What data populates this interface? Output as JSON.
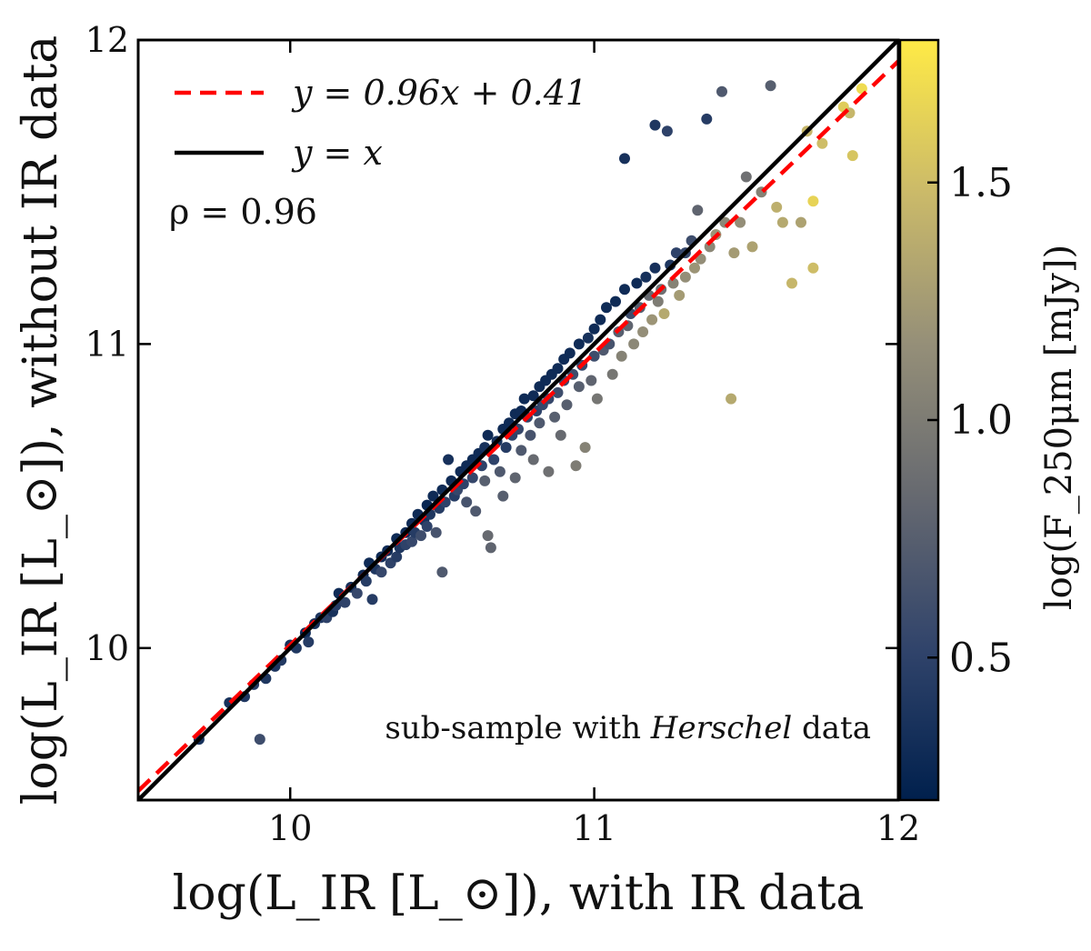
{
  "chart_data": {
    "type": "scatter",
    "xlabel": "log(L_IR [L_⊙]), with IR data",
    "ylabel": "log(L_IR [L_⊙]), without IR data",
    "xlim": [
      9.5,
      12.0
    ],
    "ylim": [
      9.5,
      12.0
    ],
    "x_ticks": [
      "10",
      "11",
      "12"
    ],
    "y_ticks": [
      "10",
      "11",
      "12"
    ],
    "annotation": "sub-sample with Herschel data",
    "annotation_prefix": "sub-sample with ",
    "annotation_italic": "Herschel",
    "annotation_suffix": " data",
    "correlation_label": "ρ = 0.96",
    "legend_position": "top-left",
    "legend": [
      {
        "label": "y = 0.96x + 0.41",
        "color": "#ff0000",
        "style": "dashed"
      },
      {
        "label": "y = x",
        "color": "#000000",
        "style": "solid"
      }
    ],
    "lines": [
      {
        "name": "fit",
        "slope": 0.96,
        "intercept": 0.41,
        "color": "#ff0000",
        "style": "dashed"
      },
      {
        "name": "identity",
        "slope": 1.0,
        "intercept": 0.0,
        "color": "#000000",
        "style": "solid"
      }
    ],
    "colorbar": {
      "label": "log(F_250μm [mJy])",
      "range": [
        0.2,
        1.8
      ],
      "ticks": [
        "0.5",
        "1.0",
        "1.5"
      ],
      "colormap": "cividis",
      "stops": [
        "#00204d",
        "#31446b",
        "#666970",
        "#958f78",
        "#cbba69",
        "#ffea46"
      ]
    },
    "points": [
      [
        9.7,
        9.7,
        0.35
      ],
      [
        9.8,
        9.82,
        0.35
      ],
      [
        9.85,
        9.84,
        0.4
      ],
      [
        9.88,
        9.88,
        0.45
      ],
      [
        9.9,
        9.7,
        0.6
      ],
      [
        9.92,
        9.9,
        0.4
      ],
      [
        9.95,
        9.94,
        0.38
      ],
      [
        9.97,
        9.96,
        0.42
      ],
      [
        10.0,
        10.01,
        0.35
      ],
      [
        10.02,
        10.0,
        0.4
      ],
      [
        10.05,
        10.05,
        0.3
      ],
      [
        10.06,
        10.02,
        0.45
      ],
      [
        10.08,
        10.08,
        0.35
      ],
      [
        10.1,
        10.1,
        0.4
      ],
      [
        10.12,
        10.1,
        0.5
      ],
      [
        10.14,
        10.12,
        0.35
      ],
      [
        10.15,
        10.14,
        0.45
      ],
      [
        10.16,
        10.18,
        0.3
      ],
      [
        10.18,
        10.15,
        0.5
      ],
      [
        10.2,
        10.2,
        0.35
      ],
      [
        10.22,
        10.18,
        0.55
      ],
      [
        10.24,
        10.24,
        0.3
      ],
      [
        10.25,
        10.22,
        0.45
      ],
      [
        10.26,
        10.28,
        0.3
      ],
      [
        10.27,
        10.16,
        0.45
      ],
      [
        10.28,
        10.26,
        0.4
      ],
      [
        10.3,
        10.3,
        0.3
      ],
      [
        10.3,
        10.25,
        0.55
      ],
      [
        10.32,
        10.32,
        0.3
      ],
      [
        10.33,
        10.28,
        0.5
      ],
      [
        10.35,
        10.36,
        0.3
      ],
      [
        10.35,
        10.3,
        0.45
      ],
      [
        10.36,
        10.33,
        0.4
      ],
      [
        10.38,
        10.38,
        0.3
      ],
      [
        10.38,
        10.34,
        0.5
      ],
      [
        10.4,
        10.41,
        0.3
      ],
      [
        10.4,
        10.35,
        0.55
      ],
      [
        10.41,
        10.38,
        0.45
      ],
      [
        10.42,
        10.44,
        0.3
      ],
      [
        10.43,
        10.37,
        0.6
      ],
      [
        10.44,
        10.42,
        0.35
      ],
      [
        10.45,
        10.47,
        0.25
      ],
      [
        10.45,
        10.4,
        0.5
      ],
      [
        10.46,
        10.44,
        0.4
      ],
      [
        10.47,
        10.5,
        0.3
      ],
      [
        10.48,
        10.38,
        0.65
      ],
      [
        10.49,
        10.46,
        0.45
      ],
      [
        10.5,
        10.52,
        0.3
      ],
      [
        10.5,
        10.25,
        0.7
      ],
      [
        10.51,
        10.48,
        0.5
      ],
      [
        10.52,
        10.62,
        0.35
      ],
      [
        10.53,
        10.55,
        0.3
      ],
      [
        10.54,
        10.5,
        0.45
      ],
      [
        10.55,
        10.52,
        0.55
      ],
      [
        10.56,
        10.58,
        0.3
      ],
      [
        10.57,
        10.54,
        0.5
      ],
      [
        10.58,
        10.6,
        0.3
      ],
      [
        10.58,
        10.48,
        0.65
      ],
      [
        10.6,
        10.62,
        0.3
      ],
      [
        10.6,
        10.56,
        0.55
      ],
      [
        10.61,
        10.45,
        0.7
      ],
      [
        10.62,
        10.64,
        0.3
      ],
      [
        10.63,
        10.6,
        0.5
      ],
      [
        10.64,
        10.66,
        0.35
      ],
      [
        10.64,
        10.55,
        0.75
      ],
      [
        10.65,
        10.7,
        0.3
      ],
      [
        10.65,
        10.37,
        0.85
      ],
      [
        10.66,
        10.33,
        0.8
      ],
      [
        10.67,
        10.62,
        0.5
      ],
      [
        10.68,
        10.68,
        0.35
      ],
      [
        10.69,
        10.58,
        0.7
      ],
      [
        10.7,
        10.72,
        0.3
      ],
      [
        10.7,
        10.5,
        0.75
      ],
      [
        10.71,
        10.66,
        0.45
      ],
      [
        10.72,
        10.74,
        0.3
      ],
      [
        10.73,
        10.7,
        0.5
      ],
      [
        10.74,
        10.77,
        0.3
      ],
      [
        10.74,
        10.56,
        0.8
      ],
      [
        10.75,
        10.72,
        0.55
      ],
      [
        10.76,
        10.78,
        0.3
      ],
      [
        10.76,
        10.65,
        0.7
      ],
      [
        10.77,
        10.82,
        0.3
      ],
      [
        10.78,
        10.76,
        0.5
      ],
      [
        10.79,
        10.7,
        0.65
      ],
      [
        10.8,
        10.83,
        0.3
      ],
      [
        10.8,
        10.62,
        0.85
      ],
      [
        10.81,
        10.78,
        0.5
      ],
      [
        10.82,
        10.86,
        0.3
      ],
      [
        10.82,
        10.74,
        0.7
      ],
      [
        10.83,
        10.8,
        0.55
      ],
      [
        10.84,
        10.88,
        0.3
      ],
      [
        10.85,
        10.82,
        0.55
      ],
      [
        10.85,
        10.58,
        0.9
      ],
      [
        10.86,
        10.9,
        0.3
      ],
      [
        10.87,
        10.76,
        0.75
      ],
      [
        10.88,
        10.92,
        0.3
      ],
      [
        10.88,
        10.84,
        0.6
      ],
      [
        10.89,
        10.7,
        0.85
      ],
      [
        10.9,
        10.95,
        0.3
      ],
      [
        10.9,
        10.88,
        0.55
      ],
      [
        10.91,
        10.8,
        0.75
      ],
      [
        10.92,
        10.97,
        0.3
      ],
      [
        10.93,
        10.9,
        0.6
      ],
      [
        10.94,
        10.6,
        1.0
      ],
      [
        10.95,
        11.0,
        0.3
      ],
      [
        10.95,
        10.86,
        0.75
      ],
      [
        10.96,
        10.93,
        0.55
      ],
      [
        10.97,
        10.66,
        1.05
      ],
      [
        10.98,
        11.02,
        0.35
      ],
      [
        10.99,
        10.88,
        0.8
      ],
      [
        11.0,
        11.05,
        0.3
      ],
      [
        11.0,
        10.96,
        0.6
      ],
      [
        11.01,
        10.82,
        0.95
      ],
      [
        11.02,
        11.08,
        0.3
      ],
      [
        11.03,
        10.98,
        0.7
      ],
      [
        11.04,
        11.12,
        0.3
      ],
      [
        11.05,
        11.0,
        0.65
      ],
      [
        11.06,
        10.9,
        0.95
      ],
      [
        11.07,
        11.14,
        0.3
      ],
      [
        11.08,
        11.04,
        0.75
      ],
      [
        11.09,
        10.96,
        1.05
      ],
      [
        11.1,
        11.61,
        0.35
      ],
      [
        11.1,
        11.18,
        0.3
      ],
      [
        11.11,
        11.06,
        0.8
      ],
      [
        11.12,
        11.1,
        0.6
      ],
      [
        11.13,
        11.0,
        1.1
      ],
      [
        11.14,
        11.2,
        0.3
      ],
      [
        11.15,
        11.12,
        0.75
      ],
      [
        11.16,
        11.04,
        1.15
      ],
      [
        11.17,
        11.22,
        0.35
      ],
      [
        11.18,
        11.16,
        0.85
      ],
      [
        11.19,
        11.08,
        1.2
      ],
      [
        11.2,
        11.25,
        0.35
      ],
      [
        11.2,
        11.72,
        0.4
      ],
      [
        11.21,
        11.14,
        1.0
      ],
      [
        11.22,
        11.18,
        0.9
      ],
      [
        11.23,
        11.1,
        1.35
      ],
      [
        11.24,
        11.7,
        0.5
      ],
      [
        11.25,
        11.26,
        0.4
      ],
      [
        11.26,
        11.2,
        1.05
      ],
      [
        11.27,
        11.3,
        0.5
      ],
      [
        11.28,
        11.16,
        1.25
      ],
      [
        11.3,
        11.3,
        0.55
      ],
      [
        11.3,
        11.22,
        1.15
      ],
      [
        11.32,
        11.34,
        0.6
      ],
      [
        11.33,
        11.25,
        1.2
      ],
      [
        11.34,
        11.44,
        0.8
      ],
      [
        11.35,
        11.28,
        1.15
      ],
      [
        11.37,
        11.74,
        0.45
      ],
      [
        11.38,
        11.32,
        1.1
      ],
      [
        11.4,
        11.36,
        1.2
      ],
      [
        11.42,
        11.83,
        0.7
      ],
      [
        11.43,
        11.4,
        1.1
      ],
      [
        11.45,
        10.82,
        1.35
      ],
      [
        11.46,
        11.3,
        1.25
      ],
      [
        11.48,
        11.4,
        1.15
      ],
      [
        11.5,
        11.55,
        0.9
      ],
      [
        11.52,
        11.32,
        1.3
      ],
      [
        11.55,
        11.5,
        1.05
      ],
      [
        11.58,
        11.85,
        0.75
      ],
      [
        11.6,
        11.45,
        1.4
      ],
      [
        11.62,
        11.4,
        1.35
      ],
      [
        11.65,
        11.2,
        1.45
      ],
      [
        11.68,
        11.4,
        1.3
      ],
      [
        11.7,
        11.7,
        1.45
      ],
      [
        11.72,
        11.47,
        1.65
      ],
      [
        11.72,
        11.25,
        1.5
      ],
      [
        11.75,
        11.66,
        1.5
      ],
      [
        11.82,
        11.78,
        1.6
      ],
      [
        11.84,
        11.76,
        1.45
      ],
      [
        11.85,
        11.62,
        1.55
      ],
      [
        11.88,
        11.84,
        1.7
      ]
    ]
  }
}
